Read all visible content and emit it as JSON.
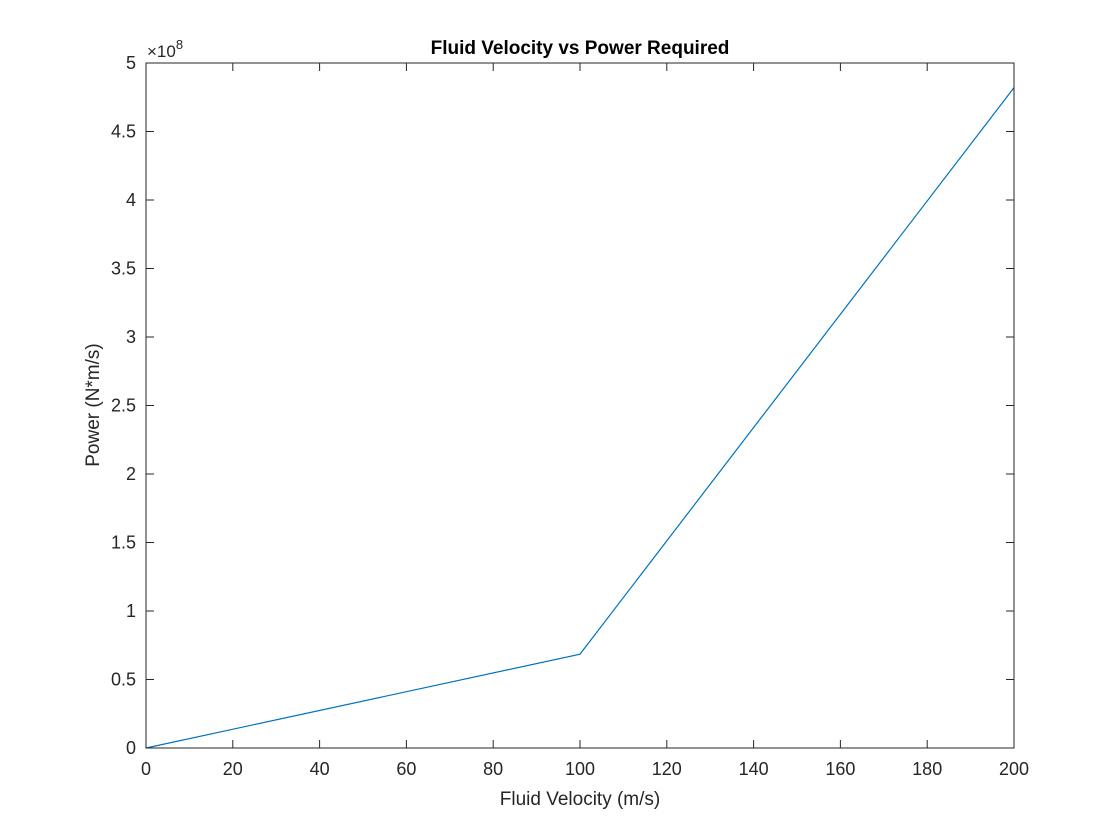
{
  "chart_data": {
    "type": "line",
    "title": "Fluid Velocity vs Power Required",
    "xlabel": "Fluid Velocity (m/s)",
    "ylabel": "Power (N*m/s)",
    "y_exponent_label": "×10",
    "y_exponent": "8",
    "xlim": [
      0,
      200
    ],
    "ylim": [
      0,
      5
    ],
    "x_ticks": [
      0,
      20,
      40,
      60,
      80,
      100,
      120,
      140,
      160,
      180,
      200
    ],
    "x_tick_labels": [
      "0",
      "20",
      "40",
      "60",
      "80",
      "100",
      "120",
      "140",
      "160",
      "180",
      "200"
    ],
    "y_ticks": [
      0,
      0.5,
      1,
      1.5,
      2,
      2.5,
      3,
      3.5,
      4,
      4.5,
      5
    ],
    "y_tick_labels": [
      "0",
      "0.5",
      "1",
      "1.5",
      "2",
      "2.5",
      "3",
      "3.5",
      "4",
      "4.5",
      "5"
    ],
    "grid": false,
    "series": [
      {
        "color": "#0072BD",
        "x": [
          0,
          100,
          200
        ],
        "y": [
          0,
          0.685,
          4.82
        ]
      }
    ]
  }
}
